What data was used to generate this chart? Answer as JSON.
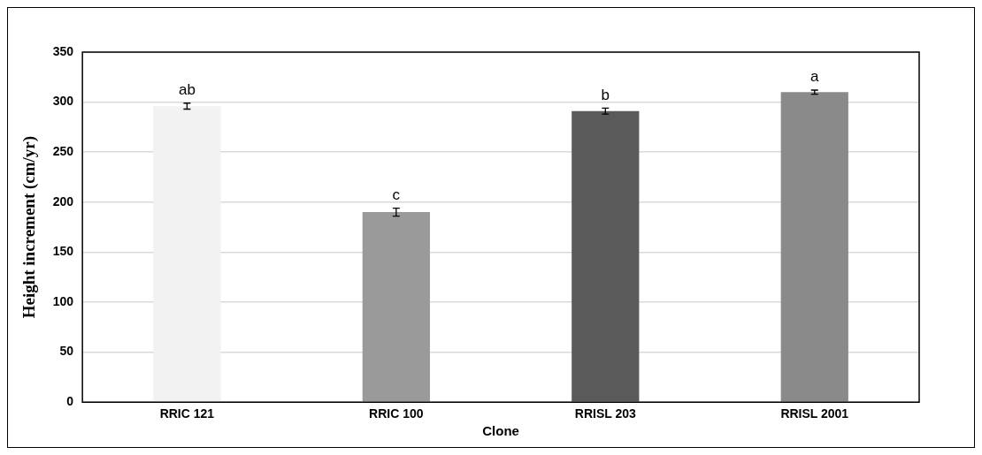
{
  "chart_data": {
    "type": "bar",
    "xlabel": "Clone",
    "ylabel": "Height increment (cm/yr)",
    "categories": [
      "RRIC 121",
      "RRIC 100",
      "RRISL 203",
      "RRISL 2001"
    ],
    "values": [
      296,
      190,
      291,
      310
    ],
    "errors": [
      3,
      4,
      3,
      2
    ],
    "colors": [
      "#f2f2f2",
      "#9a9a9a",
      "#5a5a5a",
      "#8a8a8a"
    ],
    "ylim": [
      0,
      350
    ],
    "yticks": [
      0,
      50,
      100,
      150,
      200,
      250,
      300,
      350
    ],
    "grid": "y",
    "legend": false,
    "annotations": [
      {
        "text": "ab",
        "x": "RRIC 121",
        "y": 299
      },
      {
        "text": "c",
        "x": "RRIC 100",
        "y": 194
      },
      {
        "text": "b",
        "x": "RRISL 203",
        "y": 294
      },
      {
        "text": "a",
        "x": "RRISL 2001",
        "y": 312
      }
    ]
  }
}
